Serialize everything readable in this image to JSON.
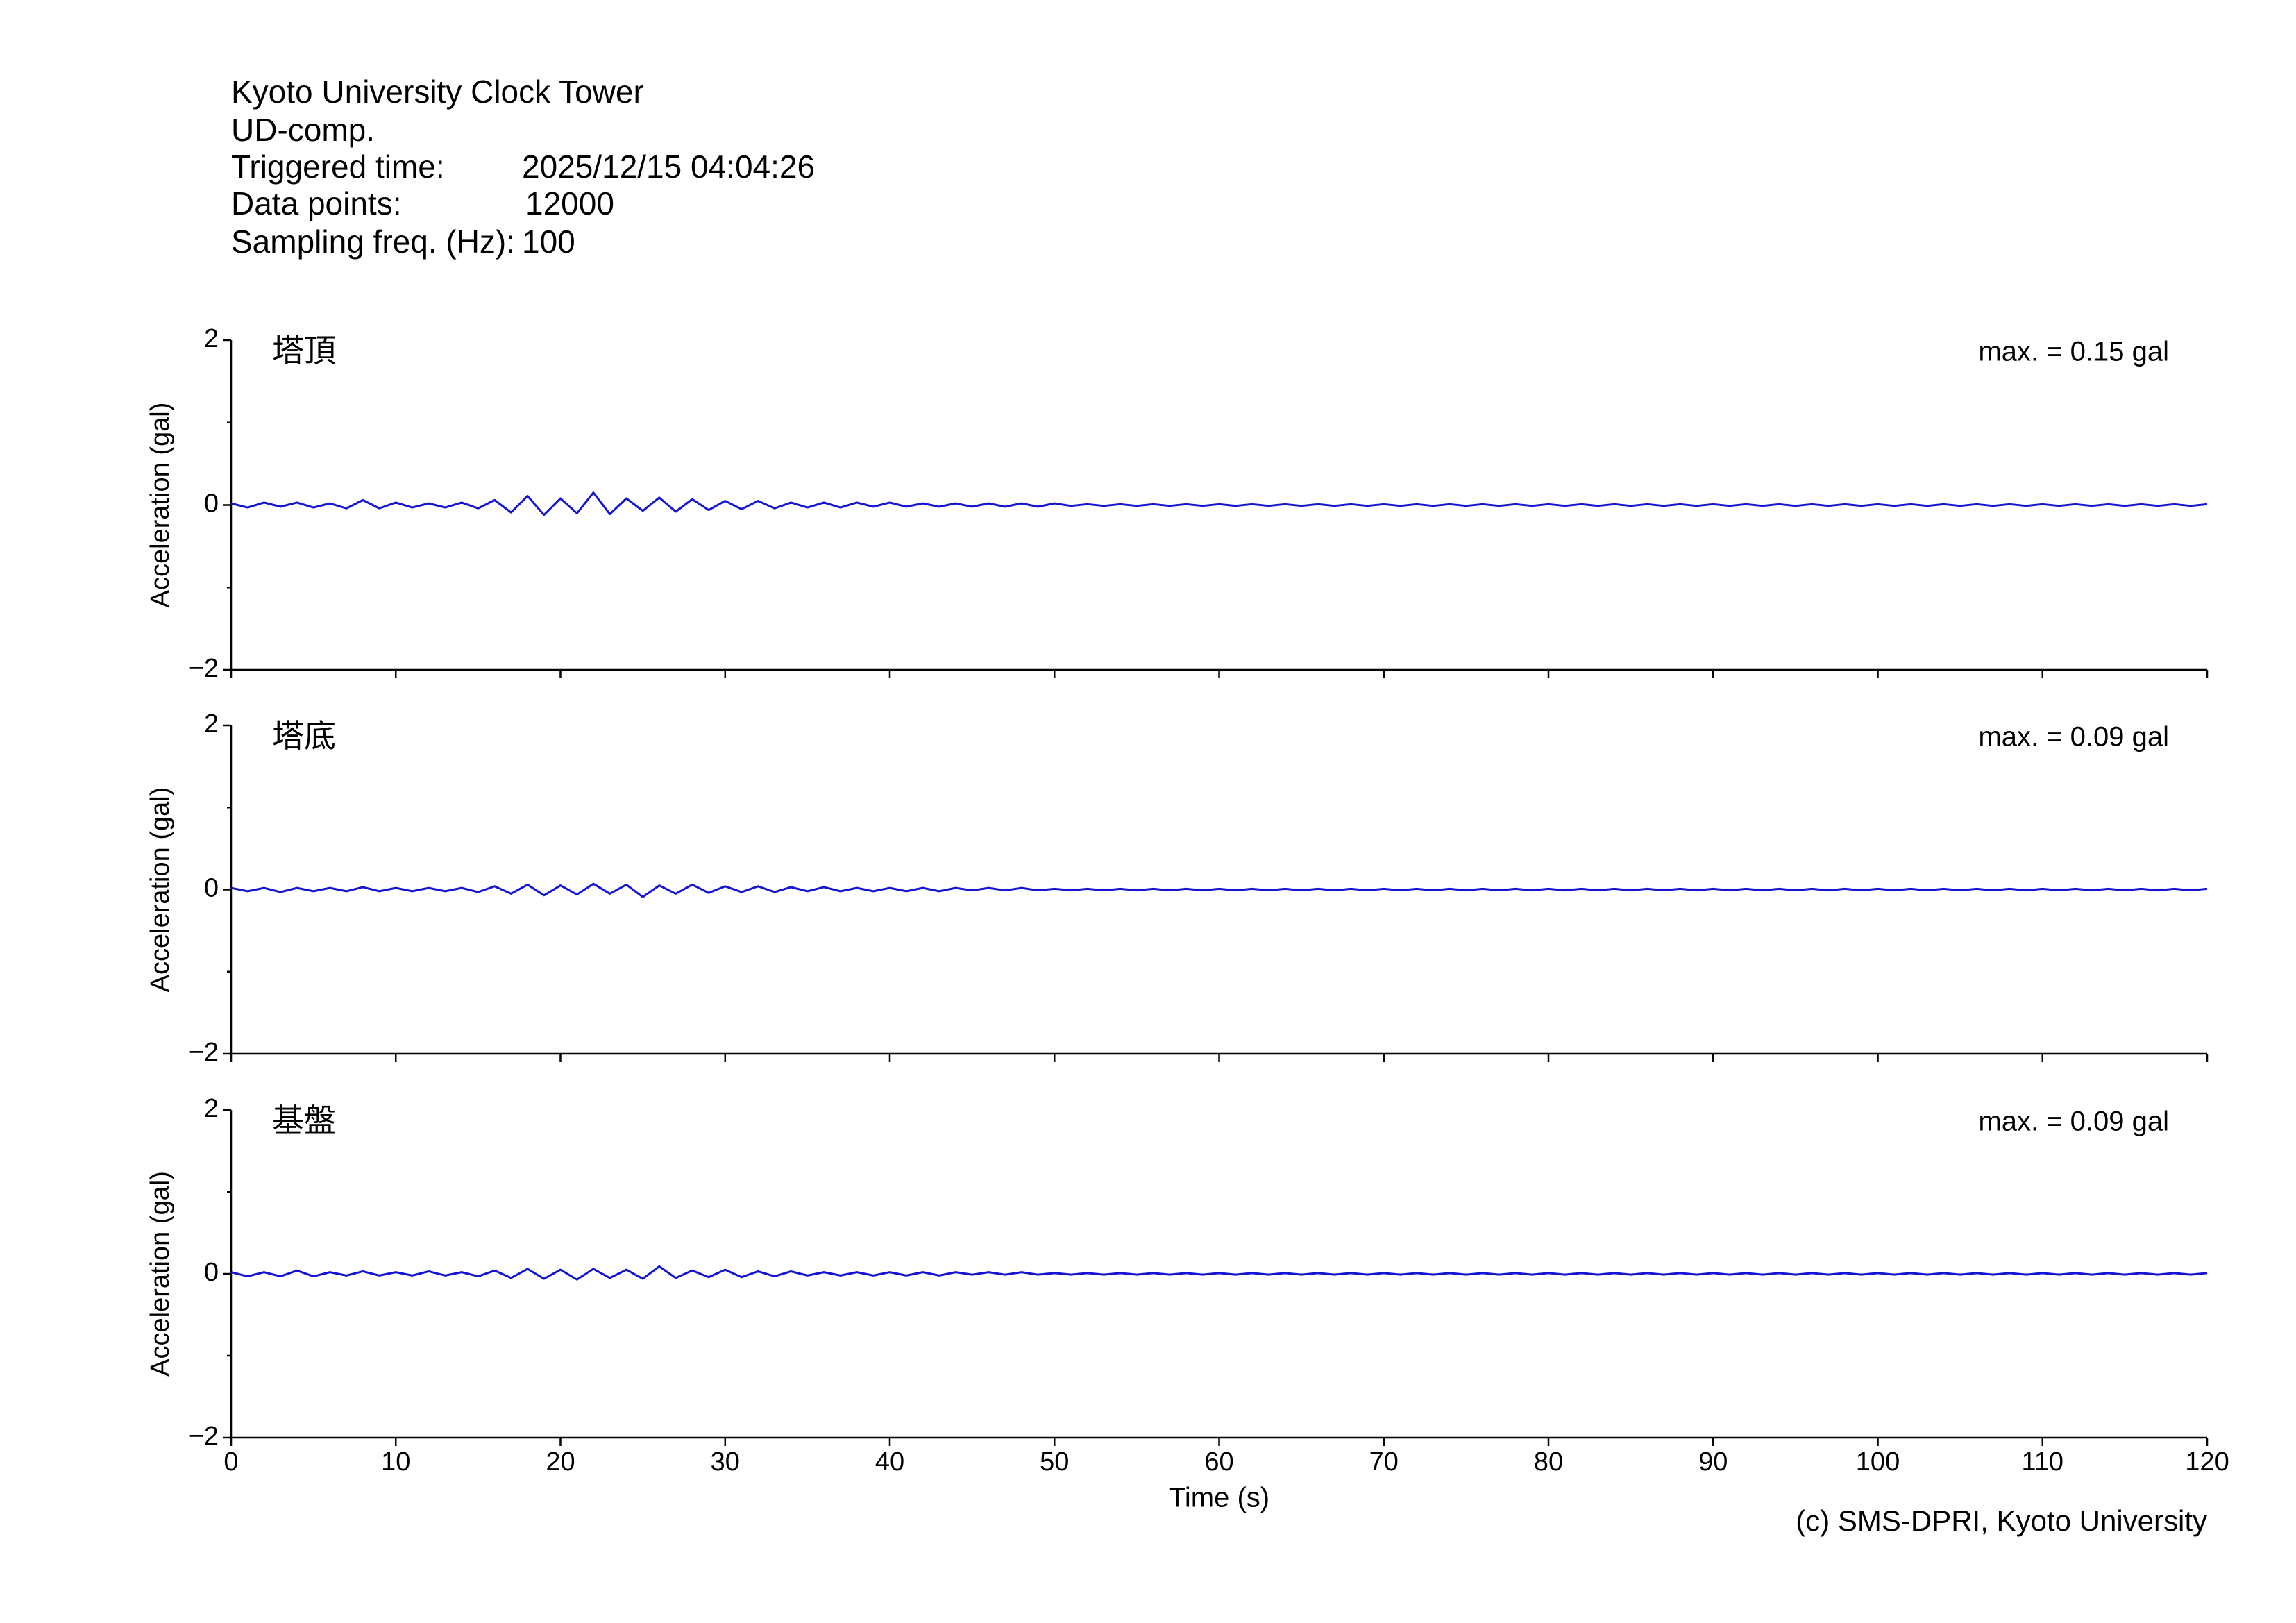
{
  "header": {
    "title": "Kyoto University Clock Tower",
    "component": "UD-comp.",
    "rows": [
      [
        "Triggered time:",
        "2025/12/15 04:04:26"
      ],
      [
        "Data points:",
        "12000"
      ],
      [
        "Sampling freq. (Hz):",
        "100"
      ]
    ]
  },
  "credit": "(c) SMS-DPRI, Kyoto University",
  "chart_data": [
    {
      "type": "line",
      "label": "塔頂",
      "annotation": "max. = 0.15 gal",
      "ylabel": "Acceleration (gal)",
      "color": "#1414d2",
      "xlim": [
        0,
        120
      ],
      "xticks": [
        0,
        10,
        20,
        30,
        40,
        50,
        60,
        70,
        80,
        90,
        100,
        110,
        120
      ],
      "xticklabels": false,
      "ylim": [
        -2,
        2
      ],
      "yticks": [
        {
          "value": -2,
          "label": "−2"
        },
        0,
        2
      ],
      "yminorticks": [
        -1,
        1
      ],
      "x": [
        0,
        1,
        2,
        3,
        4,
        5,
        6,
        7,
        8,
        9,
        10,
        11,
        12,
        13,
        14,
        15,
        16,
        17,
        18,
        19,
        20,
        21,
        22,
        23,
        24,
        25,
        26,
        27,
        28,
        29,
        30,
        31,
        32,
        33,
        34,
        35,
        36,
        37,
        38,
        39,
        40,
        41,
        42,
        43,
        44,
        45,
        46,
        47,
        48,
        49,
        50,
        51,
        52,
        53,
        54,
        55,
        56,
        57,
        58,
        59,
        60,
        61,
        62,
        63,
        64,
        65,
        66,
        67,
        68,
        69,
        70,
        71,
        72,
        73,
        74,
        75,
        76,
        77,
        78,
        79,
        80,
        81,
        82,
        83,
        84,
        85,
        86,
        87,
        88,
        89,
        90,
        91,
        92,
        93,
        94,
        95,
        96,
        97,
        98,
        99,
        100,
        101,
        102,
        103,
        104,
        105,
        106,
        107,
        108,
        109,
        110,
        111,
        112,
        113,
        114,
        115,
        116,
        117,
        118,
        119,
        120
      ],
      "values": [
        0.02,
        -0.03,
        0.03,
        -0.02,
        0.03,
        -0.03,
        0.02,
        -0.04,
        0.06,
        -0.04,
        0.03,
        -0.03,
        0.02,
        -0.03,
        0.03,
        -0.04,
        0.06,
        -0.09,
        0.11,
        -0.12,
        0.08,
        -0.1,
        0.15,
        -0.11,
        0.08,
        -0.07,
        0.09,
        -0.08,
        0.07,
        -0.06,
        0.05,
        -0.05,
        0.05,
        -0.04,
        0.03,
        -0.03,
        0.03,
        -0.03,
        0.03,
        -0.02,
        0.03,
        -0.02,
        0.02,
        -0.02,
        0.02,
        -0.02,
        0.02,
        -0.02,
        0.02,
        -0.02,
        0.02,
        -0.01,
        0.01,
        -0.01,
        0.01,
        -0.01,
        0.01,
        -0.01,
        0.01,
        -0.01,
        0.01,
        -0.01,
        0.01,
        -0.01,
        0.01,
        -0.01,
        0.01,
        -0.01,
        0.01,
        -0.01,
        0.01,
        -0.01,
        0.01,
        -0.01,
        0.01,
        -0.01,
        0.01,
        -0.01,
        0.01,
        -0.01,
        0.01,
        -0.01,
        0.01,
        -0.01,
        0.01,
        -0.01,
        0.01,
        -0.01,
        0.01,
        -0.01,
        0.01,
        -0.01,
        0.01,
        -0.01,
        0.01,
        -0.01,
        0.01,
        -0.01,
        0.01,
        -0.01,
        0.01,
        -0.01,
        0.01,
        -0.01,
        0.01,
        -0.01,
        0.01,
        -0.01,
        0.01,
        -0.01,
        0.01,
        -0.01,
        0.01,
        -0.01,
        0.01,
        -0.01,
        0.01,
        -0.01,
        0.01,
        -0.01,
        0.01
      ]
    },
    {
      "type": "line",
      "label": "塔底",
      "annotation": "max. = 0.09 gal",
      "ylabel": "Acceleration (gal)",
      "color": "#1414d2",
      "xlim": [
        0,
        120
      ],
      "xticks": [
        0,
        10,
        20,
        30,
        40,
        50,
        60,
        70,
        80,
        90,
        100,
        110,
        120
      ],
      "xticklabels": false,
      "ylim": [
        -2,
        2
      ],
      "yticks": [
        {
          "value": -2,
          "label": "−2"
        },
        0,
        2
      ],
      "yminorticks": [
        -1,
        1
      ],
      "x": [
        0,
        1,
        2,
        3,
        4,
        5,
        6,
        7,
        8,
        9,
        10,
        11,
        12,
        13,
        14,
        15,
        16,
        17,
        18,
        19,
        20,
        21,
        22,
        23,
        24,
        25,
        26,
        27,
        28,
        29,
        30,
        31,
        32,
        33,
        34,
        35,
        36,
        37,
        38,
        39,
        40,
        41,
        42,
        43,
        44,
        45,
        46,
        47,
        48,
        49,
        50,
        51,
        52,
        53,
        54,
        55,
        56,
        57,
        58,
        59,
        60,
        61,
        62,
        63,
        64,
        65,
        66,
        67,
        68,
        69,
        70,
        71,
        72,
        73,
        74,
        75,
        76,
        77,
        78,
        79,
        80,
        81,
        82,
        83,
        84,
        85,
        86,
        87,
        88,
        89,
        90,
        91,
        92,
        93,
        94,
        95,
        96,
        97,
        98,
        99,
        100,
        101,
        102,
        103,
        104,
        105,
        106,
        107,
        108,
        109,
        110,
        111,
        112,
        113,
        114,
        115,
        116,
        117,
        118,
        119,
        120
      ],
      "values": [
        0.02,
        -0.02,
        0.02,
        -0.03,
        0.02,
        -0.02,
        0.02,
        -0.02,
        0.03,
        -0.02,
        0.02,
        -0.02,
        0.02,
        -0.02,
        0.02,
        -0.03,
        0.04,
        -0.05,
        0.06,
        -0.07,
        0.05,
        -0.06,
        0.07,
        -0.05,
        0.06,
        -0.09,
        0.05,
        -0.05,
        0.06,
        -0.04,
        0.04,
        -0.03,
        0.04,
        -0.03,
        0.03,
        -0.02,
        0.03,
        -0.02,
        0.02,
        -0.02,
        0.02,
        -0.02,
        0.02,
        -0.02,
        0.02,
        -0.01,
        0.02,
        -0.01,
        0.02,
        -0.01,
        0.01,
        -0.01,
        0.01,
        -0.01,
        0.01,
        -0.01,
        0.01,
        -0.01,
        0.01,
        -0.01,
        0.01,
        -0.01,
        0.01,
        -0.01,
        0.01,
        -0.01,
        0.01,
        -0.01,
        0.01,
        -0.01,
        0.01,
        -0.01,
        0.01,
        -0.01,
        0.01,
        -0.01,
        0.01,
        -0.01,
        0.01,
        -0.01,
        0.01,
        -0.01,
        0.01,
        -0.01,
        0.01,
        -0.01,
        0.01,
        -0.01,
        0.01,
        -0.01,
        0.01,
        -0.01,
        0.01,
        -0.01,
        0.01,
        -0.01,
        0.01,
        -0.01,
        0.01,
        -0.01,
        0.01,
        -0.01,
        0.01,
        -0.01,
        0.01,
        -0.01,
        0.01,
        -0.01,
        0.01,
        -0.01,
        0.01,
        -0.01,
        0.01,
        -0.01,
        0.01,
        -0.01,
        0.01,
        -0.01,
        0.01,
        -0.01,
        0.01
      ]
    },
    {
      "type": "line",
      "label": "基盤",
      "annotation": "max. = 0.09 gal",
      "ylabel": "Acceleration (gal)",
      "xlabel": "Time (s)",
      "color": "#1414d2",
      "xlim": [
        0,
        120
      ],
      "xticks": [
        0,
        10,
        20,
        30,
        40,
        50,
        60,
        70,
        80,
        90,
        100,
        110,
        120
      ],
      "xticklabels": true,
      "ylim": [
        -2,
        2
      ],
      "yticks": [
        {
          "value": -2,
          "label": "−2"
        },
        0,
        2
      ],
      "yminorticks": [
        -1,
        1
      ],
      "x": [
        0,
        1,
        2,
        3,
        4,
        5,
        6,
        7,
        8,
        9,
        10,
        11,
        12,
        13,
        14,
        15,
        16,
        17,
        18,
        19,
        20,
        21,
        22,
        23,
        24,
        25,
        26,
        27,
        28,
        29,
        30,
        31,
        32,
        33,
        34,
        35,
        36,
        37,
        38,
        39,
        40,
        41,
        42,
        43,
        44,
        45,
        46,
        47,
        48,
        49,
        50,
        51,
        52,
        53,
        54,
        55,
        56,
        57,
        58,
        59,
        60,
        61,
        62,
        63,
        64,
        65,
        66,
        67,
        68,
        69,
        70,
        71,
        72,
        73,
        74,
        75,
        76,
        77,
        78,
        79,
        80,
        81,
        82,
        83,
        84,
        85,
        86,
        87,
        88,
        89,
        90,
        91,
        92,
        93,
        94,
        95,
        96,
        97,
        98,
        99,
        100,
        101,
        102,
        103,
        104,
        105,
        106,
        107,
        108,
        109,
        110,
        111,
        112,
        113,
        114,
        115,
        116,
        117,
        118,
        119,
        120
      ],
      "values": [
        0.02,
        -0.03,
        0.02,
        -0.03,
        0.04,
        -0.03,
        0.02,
        -0.02,
        0.03,
        -0.02,
        0.02,
        -0.02,
        0.03,
        -0.02,
        0.02,
        -0.03,
        0.04,
        -0.05,
        0.06,
        -0.06,
        0.05,
        -0.07,
        0.06,
        -0.05,
        0.05,
        -0.06,
        0.09,
        -0.05,
        0.04,
        -0.04,
        0.05,
        -0.04,
        0.03,
        -0.03,
        0.03,
        -0.02,
        0.02,
        -0.02,
        0.02,
        -0.02,
        0.02,
        -0.02,
        0.02,
        -0.02,
        0.02,
        -0.01,
        0.02,
        -0.01,
        0.02,
        -0.01,
        0.01,
        -0.01,
        0.01,
        -0.01,
        0.01,
        -0.01,
        0.01,
        -0.01,
        0.01,
        -0.01,
        0.01,
        -0.01,
        0.01,
        -0.01,
        0.01,
        -0.01,
        0.01,
        -0.01,
        0.01,
        -0.01,
        0.01,
        -0.01,
        0.01,
        -0.01,
        0.01,
        -0.01,
        0.01,
        -0.01,
        0.01,
        -0.01,
        0.01,
        -0.01,
        0.01,
        -0.01,
        0.01,
        -0.01,
        0.01,
        -0.01,
        0.01,
        -0.01,
        0.01,
        -0.01,
        0.01,
        -0.01,
        0.01,
        -0.01,
        0.01,
        -0.01,
        0.01,
        -0.01,
        0.01,
        -0.01,
        0.01,
        -0.01,
        0.01,
        -0.01,
        0.01,
        -0.01,
        0.01,
        -0.01,
        0.01,
        -0.01,
        0.01,
        -0.01,
        0.01,
        -0.01,
        0.01,
        -0.01,
        0.01,
        -0.01,
        0.01
      ]
    }
  ]
}
